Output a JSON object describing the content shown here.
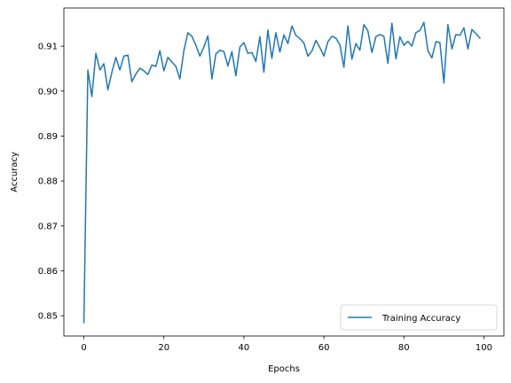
{
  "chart_data": {
    "type": "line",
    "title": "",
    "xlabel": "Epochs",
    "ylabel": "Accuracy",
    "xlim": [
      -5,
      105
    ],
    "ylim": [
      0.8455,
      0.9185
    ],
    "xticks": [
      0,
      20,
      40,
      60,
      80,
      100
    ],
    "xtick_labels": [
      "0",
      "20",
      "40",
      "60",
      "80",
      "100"
    ],
    "yticks": [
      0.85,
      0.86,
      0.87,
      0.88,
      0.89,
      0.9,
      0.91
    ],
    "ytick_labels": [
      "0.85",
      "0.86",
      "0.87",
      "0.88",
      "0.89",
      "0.90",
      "0.91"
    ],
    "grid": false,
    "legend_position": "lower-right",
    "series": [
      {
        "name": "Training Accuracy",
        "color": "#1f77b4",
        "x": [
          0,
          1,
          2,
          3,
          4,
          5,
          6,
          7,
          8,
          9,
          10,
          11,
          12,
          13,
          14,
          15,
          16,
          17,
          18,
          19,
          20,
          21,
          22,
          23,
          24,
          25,
          26,
          27,
          28,
          29,
          30,
          31,
          32,
          33,
          34,
          35,
          36,
          37,
          38,
          39,
          40,
          41,
          42,
          43,
          44,
          45,
          46,
          47,
          48,
          49,
          50,
          51,
          52,
          53,
          54,
          55,
          56,
          57,
          58,
          59,
          60,
          61,
          62,
          63,
          64,
          65,
          66,
          67,
          68,
          69,
          70,
          71,
          72,
          73,
          74,
          75,
          76,
          77,
          78,
          79,
          80,
          81,
          82,
          83,
          84,
          85,
          86,
          87,
          88,
          89,
          90,
          91,
          92,
          93,
          94,
          95,
          96,
          97,
          98,
          99
        ],
        "y": [
          0.8485,
          0.9047,
          0.8988,
          0.9084,
          0.9047,
          0.9061,
          0.9003,
          0.9042,
          0.9075,
          0.9047,
          0.9078,
          0.908,
          0.9021,
          0.9038,
          0.9051,
          0.9045,
          0.9037,
          0.9058,
          0.9055,
          0.909,
          0.9045,
          0.9075,
          0.9065,
          0.9055,
          0.9027,
          0.909,
          0.913,
          0.9122,
          0.9102,
          0.9078,
          0.9098,
          0.9123,
          0.9027,
          0.9083,
          0.9091,
          0.9088,
          0.9056,
          0.9088,
          0.9034,
          0.9098,
          0.9108,
          0.9084,
          0.9086,
          0.9066,
          0.9121,
          0.9042,
          0.9136,
          0.9073,
          0.913,
          0.9087,
          0.9125,
          0.9106,
          0.9145,
          0.9124,
          0.9117,
          0.9107,
          0.9078,
          0.9089,
          0.9113,
          0.9097,
          0.9078,
          0.911,
          0.9122,
          0.9118,
          0.9103,
          0.9053,
          0.9145,
          0.9071,
          0.9106,
          0.9091,
          0.9148,
          0.9134,
          0.9086,
          0.9121,
          0.9126,
          0.9122,
          0.9062,
          0.9151,
          0.9072,
          0.9121,
          0.9102,
          0.9111,
          0.91,
          0.913,
          0.9135,
          0.9153,
          0.909,
          0.9074,
          0.911,
          0.9108,
          0.9018,
          0.9148,
          0.9094,
          0.9126,
          0.9124,
          0.9141,
          0.9094,
          0.9137,
          0.9128,
          0.9118
        ]
      }
    ]
  }
}
